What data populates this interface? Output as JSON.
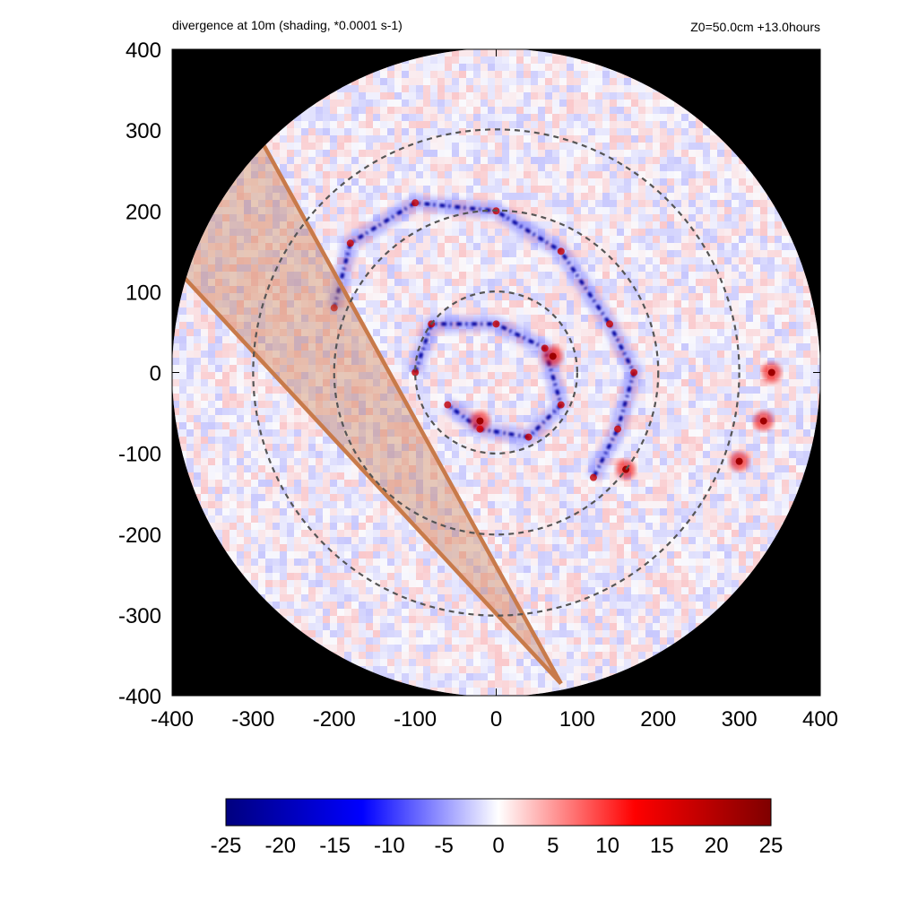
{
  "header": {
    "title": "divergence at 10m (shading, *0.0001 s-1)",
    "info": "Z0=50.0cm  +13.0hours"
  },
  "chart_data": {
    "type": "heatmap",
    "title": "divergence at 10m (shading, *0.0001 s-1)",
    "annotation": "Z0=50.0cm  +13.0hours",
    "xlabel": "",
    "ylabel": "",
    "xlim": [
      -400,
      400
    ],
    "ylim": [
      -400,
      400
    ],
    "x_ticks": [
      -400,
      -300,
      -200,
      -100,
      0,
      100,
      200,
      300,
      400
    ],
    "y_ticks": [
      -400,
      -300,
      -200,
      -100,
      0,
      100,
      200,
      300,
      400
    ],
    "domain_radius": 400,
    "range_rings": [
      100,
      200,
      300
    ],
    "shaded_sector": {
      "apex": [
        80,
        -385
      ],
      "edge_1_end": [
        -285,
        278
      ],
      "edge_2_end": [
        -380,
        112
      ],
      "color": "#c87a4a"
    },
    "colorbar": {
      "range": [
        -25,
        25
      ],
      "ticks": [
        -25,
        -20,
        -15,
        -10,
        -5,
        0,
        5,
        10,
        15,
        20,
        25
      ],
      "colors": [
        "#00007f",
        "#0000ff",
        "#ffffff",
        "#ff0000",
        "#7f0000"
      ]
    },
    "features": [
      {
        "kind": "convergence_band",
        "sign": "negative",
        "points": [
          [
            -200,
            80
          ],
          [
            -180,
            160
          ],
          [
            -100,
            210
          ],
          [
            0,
            200
          ],
          [
            80,
            150
          ],
          [
            140,
            60
          ],
          [
            170,
            0
          ],
          [
            150,
            -70
          ],
          [
            120,
            -130
          ]
        ]
      },
      {
        "kind": "convergence_band",
        "sign": "negative",
        "points": [
          [
            -100,
            0
          ],
          [
            -80,
            60
          ],
          [
            0,
            60
          ],
          [
            60,
            30
          ],
          [
            80,
            -40
          ],
          [
            40,
            -80
          ],
          [
            -20,
            -70
          ],
          [
            -60,
            -40
          ]
        ]
      },
      {
        "kind": "divergence_cluster",
        "sign": "positive",
        "points": [
          [
            340,
            0
          ],
          [
            330,
            -60
          ],
          [
            300,
            -110
          ],
          [
            70,
            20
          ],
          [
            -20,
            -60
          ],
          [
            160,
            -120
          ]
        ]
      }
    ]
  }
}
